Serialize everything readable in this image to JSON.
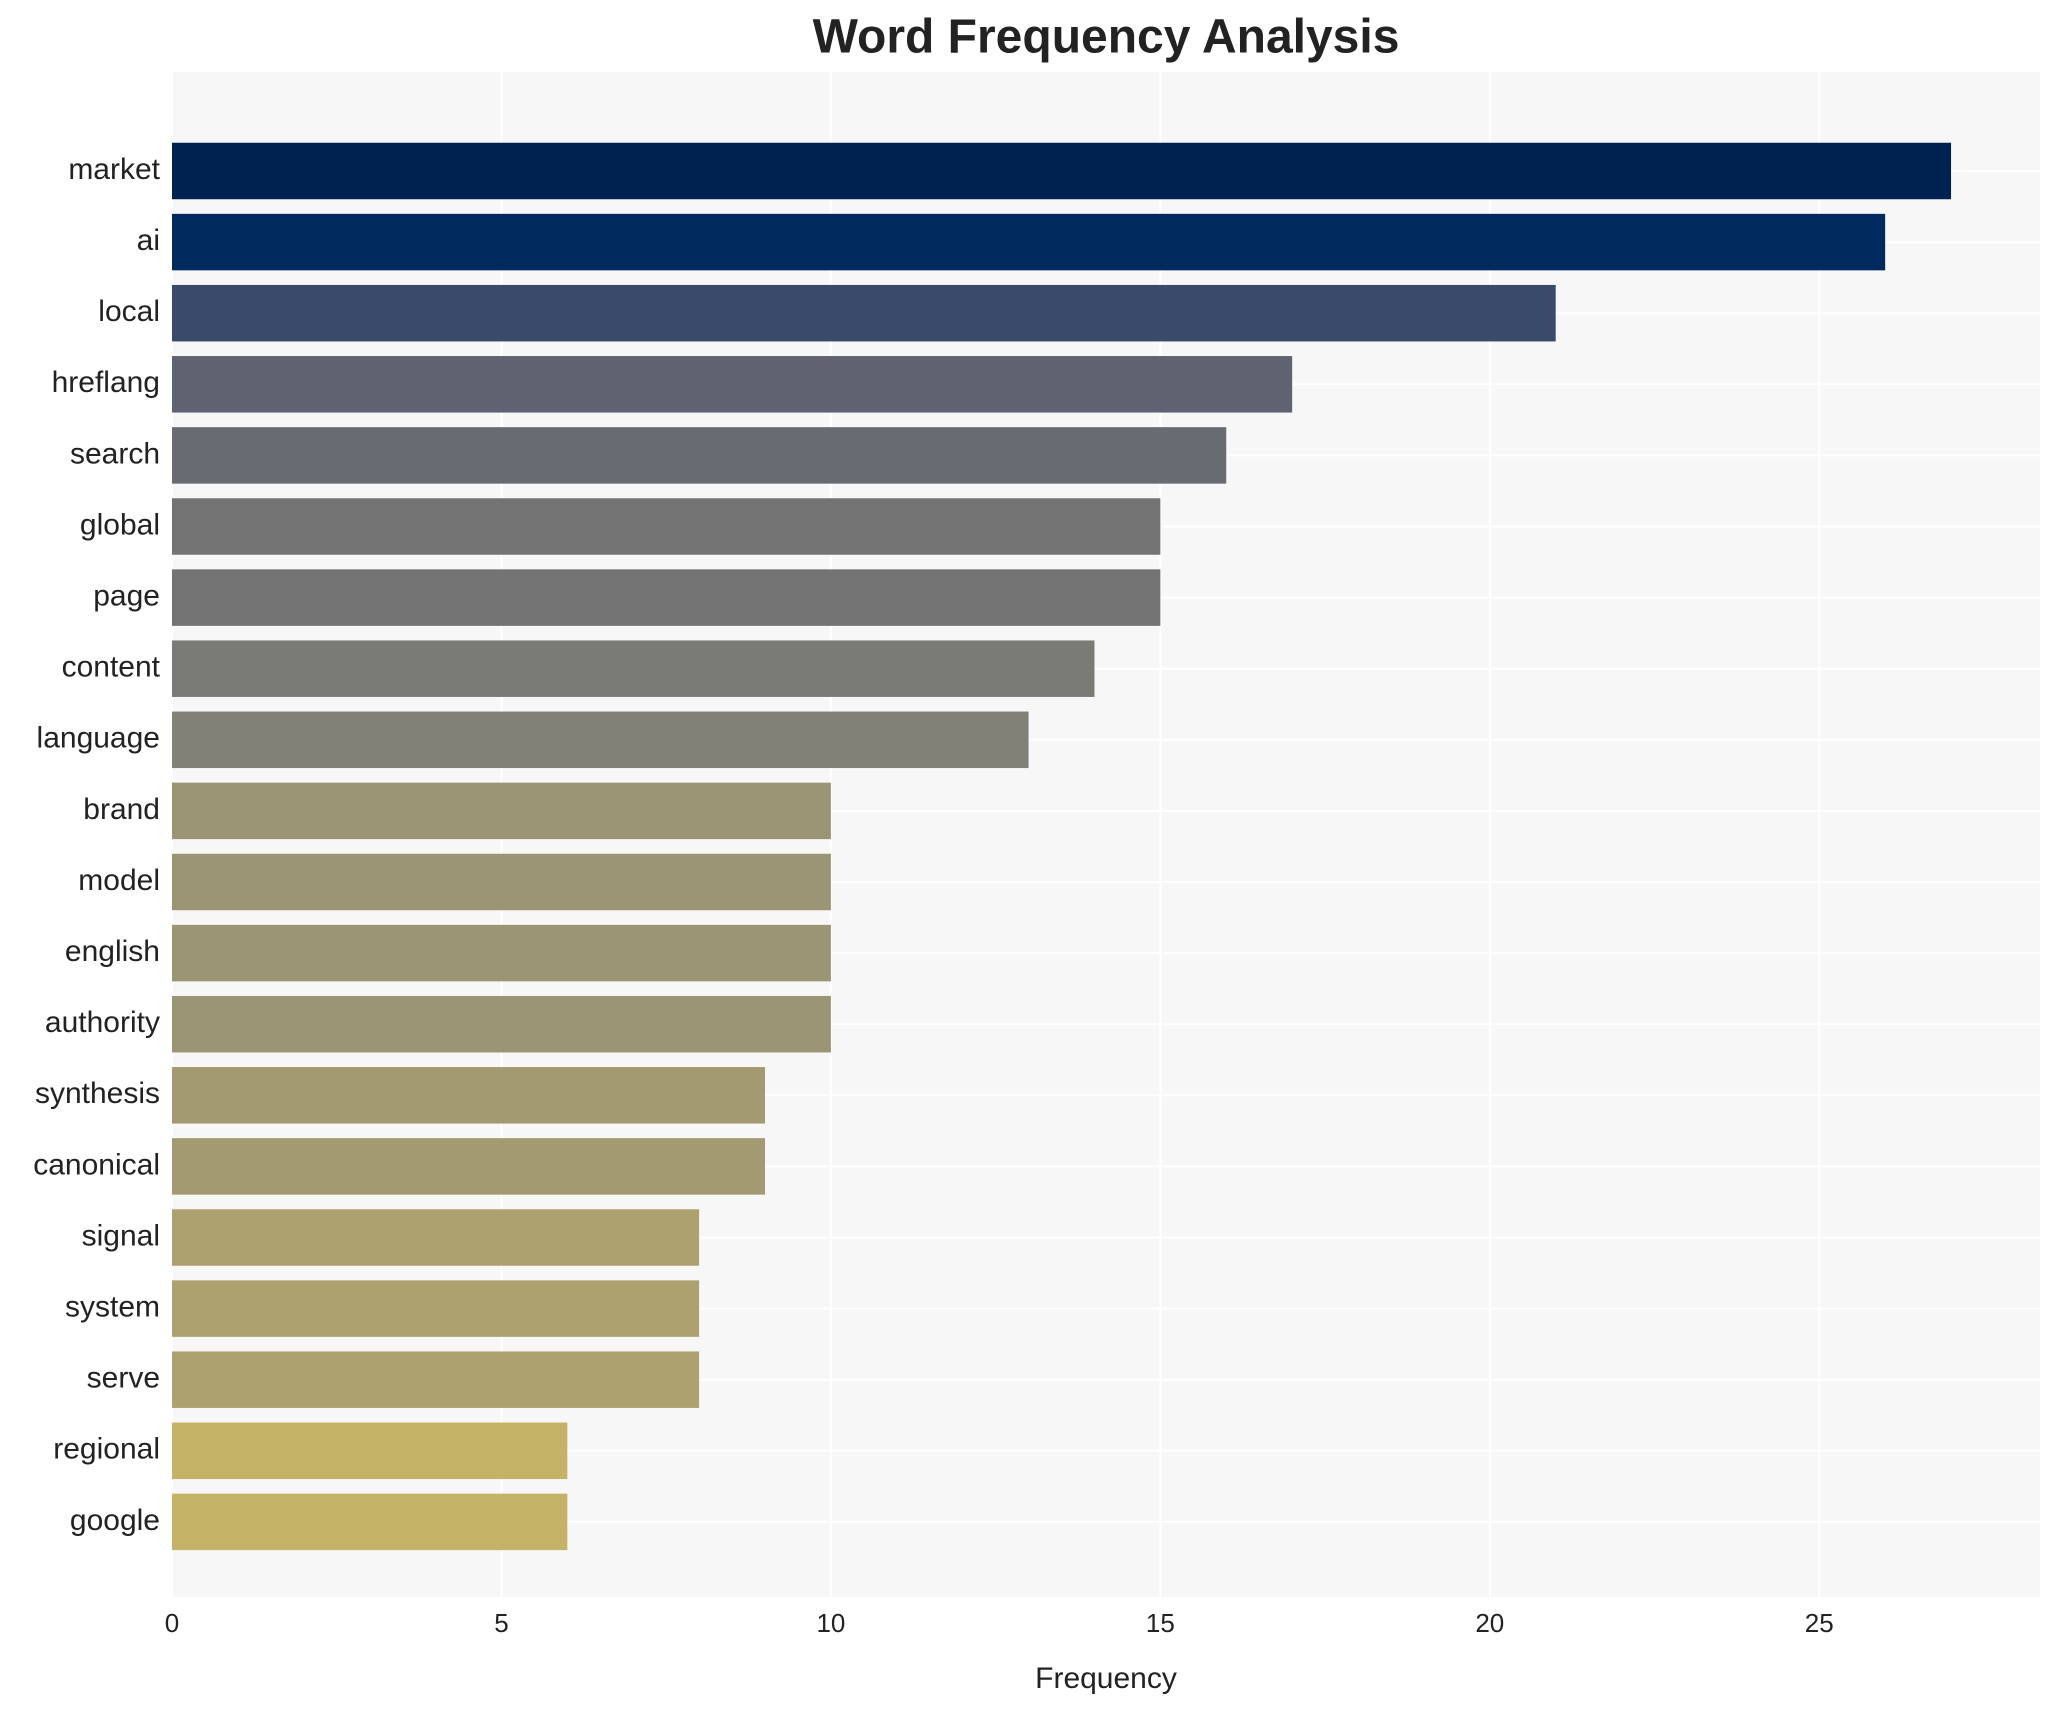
{
  "chart_data": {
    "type": "hbar",
    "title": "Word Frequency Analysis",
    "x_label": "Frequency",
    "categories": [
      "market",
      "ai",
      "local",
      "hreflang",
      "search",
      "global",
      "page",
      "content",
      "language",
      "brand",
      "model",
      "english",
      "authority",
      "synthesis",
      "canonical",
      "signal",
      "system",
      "serve",
      "regional",
      "google"
    ],
    "values": [
      27,
      26,
      21,
      17,
      16,
      15,
      15,
      14,
      13,
      10,
      10,
      10,
      10,
      9,
      9,
      8,
      8,
      8,
      6,
      6
    ],
    "colors": [
      "#002251",
      "#002a5e",
      "#3a4a6b",
      "#5f6270",
      "#696b73",
      "#737373",
      "#737373",
      "#7a7a77",
      "#828178",
      "#9c9574",
      "#9c9574",
      "#9c9574",
      "#9c9574",
      "#a39a72",
      "#a39a72",
      "#ada26f",
      "#ada26f",
      "#ada26f",
      "#c4b266",
      "#c4b266"
    ],
    "xlim": [
      0,
      28.35
    ],
    "xticks": [
      0,
      5,
      10,
      15,
      20,
      25
    ],
    "grid": true
  }
}
